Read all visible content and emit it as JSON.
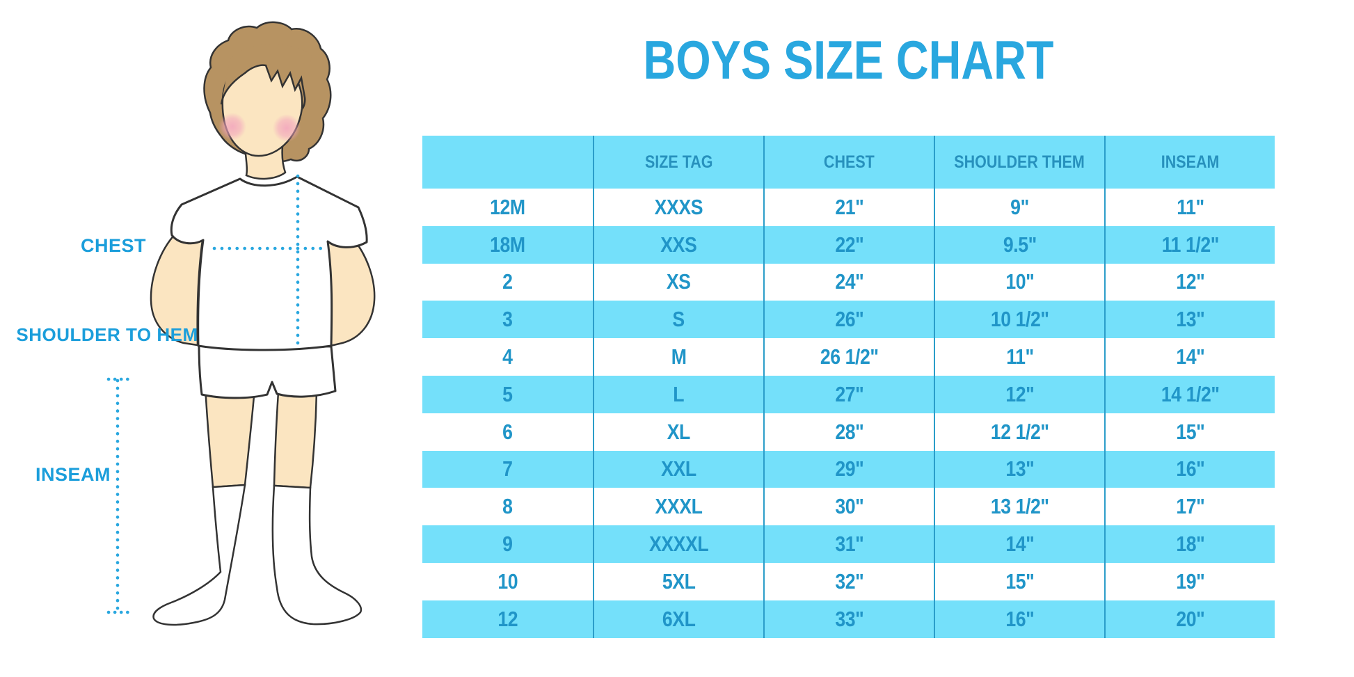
{
  "title": "BOYS SIZE CHART",
  "figure": {
    "labels": {
      "chest": "CHEST",
      "shoulder_to_hem": "SHOULDER TO HEM",
      "inseam": "INSEAM"
    }
  },
  "table": {
    "columns": [
      "",
      "SIZE TAG",
      "CHEST",
      "SHOULDER THEM",
      "INSEAM"
    ],
    "rows": [
      [
        "12M",
        "XXXS",
        "21\"",
        "9\"",
        "11\""
      ],
      [
        "18M",
        "XXS",
        "22\"",
        "9.5\"",
        "11 1/2\""
      ],
      [
        "2",
        "XS",
        "24\"",
        "10\"",
        "12\""
      ],
      [
        "3",
        "S",
        "26\"",
        "10 1/2\"",
        "13\""
      ],
      [
        "4",
        "M",
        "26 1/2\"",
        "11\"",
        "14\""
      ],
      [
        "5",
        "L",
        "27\"",
        "12\"",
        "14 1/2\""
      ],
      [
        "6",
        "XL",
        "28\"",
        "12 1/2\"",
        "15\""
      ],
      [
        "7",
        "XXL",
        "29\"",
        "13\"",
        "16\""
      ],
      [
        "8",
        "XXXL",
        "30\"",
        "13 1/2\"",
        "17\""
      ],
      [
        "9",
        "XXXXL",
        "31\"",
        "14\"",
        "18\""
      ],
      [
        "10",
        "5XL",
        "32\"",
        "15\"",
        "19\""
      ],
      [
        "12",
        "6XL",
        "33\"",
        "16\"",
        "20\""
      ]
    ]
  },
  "colors": {
    "title_blue": "#29a7df",
    "label_blue": "#1b9edb",
    "table_band_cyan": "#74e0fa",
    "table_text_blue": "#2095c8",
    "table_divider": "#2b9dc9",
    "dotted_line": "#29a7df",
    "skin": "#fbe5c1",
    "hair": "#b79362",
    "blush": "#f2a3bd",
    "outline": "#333333"
  }
}
